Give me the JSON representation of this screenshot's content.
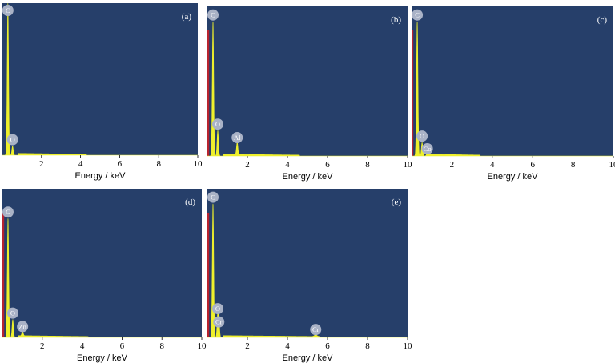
{
  "chart_data": [
    {
      "type": "area",
      "panel_label": "(a)",
      "xlabel": "Energy / keV",
      "xlim": [
        0,
        10
      ],
      "xticks": [
        2,
        4,
        6,
        8,
        10
      ],
      "ylim": [
        0,
        100
      ],
      "colors": {
        "background": "#263f6a",
        "spectrum": "#eef02c",
        "baseline_marker": "#b8232f",
        "label_circle": "#a9b2c6"
      },
      "peaks": [
        {
          "element": "C",
          "energy": 0.28,
          "height": 100,
          "labeled": true
        },
        {
          "element": "O",
          "energy": 0.52,
          "height": 6,
          "labeled": true
        }
      ],
      "background_level": 1.2,
      "background_range": [
        0.8,
        4.3
      ]
    },
    {
      "type": "area",
      "panel_label": "(b)",
      "xlabel": "Energy / keV",
      "xlim": [
        0,
        10
      ],
      "xticks": [
        2,
        4,
        6,
        8,
        10
      ],
      "ylim": [
        0,
        100
      ],
      "colors": {
        "background": "#263f6a",
        "spectrum": "#eef02c",
        "baseline_marker": "#b8232f",
        "label_circle": "#a9b2c6"
      },
      "peaks": [
        {
          "element": "C",
          "energy": 0.28,
          "height": 90,
          "labeled": true
        },
        {
          "element": "O",
          "energy": 0.52,
          "height": 17,
          "labeled": true
        },
        {
          "element": "Al",
          "energy": 1.49,
          "height": 8,
          "labeled": true
        }
      ],
      "background_level": 1.2,
      "background_range": [
        0.8,
        4.6
      ]
    },
    {
      "type": "area",
      "panel_label": "(c)",
      "xlabel": "Energy / keV",
      "xlim": [
        0,
        10
      ],
      "xticks": [
        2,
        4,
        6,
        8,
        10
      ],
      "ylim": [
        0,
        100
      ],
      "colors": {
        "background": "#263f6a",
        "spectrum": "#eef02c",
        "baseline_marker": "#b8232f",
        "label_circle": "#a9b2c6"
      },
      "peaks": [
        {
          "element": "C",
          "energy": 0.28,
          "height": 90,
          "labeled": true
        },
        {
          "element": "O",
          "energy": 0.52,
          "height": 9,
          "labeled": true
        },
        {
          "element": "Co",
          "energy": 0.78,
          "height": 3,
          "labeled": true
        }
      ],
      "background_level": 1.2,
      "background_range": [
        0.8,
        3.4
      ]
    },
    {
      "type": "area",
      "panel_label": "(d)",
      "xlabel": "Energy / keV",
      "xlim": [
        0,
        10
      ],
      "xticks": [
        2,
        4,
        6,
        8,
        10
      ],
      "ylim": [
        0,
        100
      ],
      "colors": {
        "background": "#263f6a",
        "spectrum": "#eef02c",
        "baseline_marker": "#b8232f",
        "label_circle": "#a9b2c6"
      },
      "peaks": [
        {
          "element": "C",
          "energy": 0.28,
          "height": 80,
          "labeled": true
        },
        {
          "element": "O",
          "energy": 0.52,
          "height": 12,
          "labeled": true
        },
        {
          "element": "Zn",
          "energy": 1.01,
          "height": 3,
          "labeled": true
        }
      ],
      "background_level": 1.2,
      "background_range": [
        0.8,
        4.3
      ]
    },
    {
      "type": "area",
      "panel_label": "(e)",
      "xlabel": "Energy / keV",
      "xlim": [
        0,
        10
      ],
      "xticks": [
        2,
        4,
        6,
        8,
        10
      ],
      "ylim": [
        0,
        100
      ],
      "colors": {
        "background": "#263f6a",
        "spectrum": "#eef02c",
        "baseline_marker": "#b8232f",
        "label_circle": "#a9b2c6"
      },
      "peaks": [
        {
          "element": "C",
          "energy": 0.28,
          "height": 90,
          "labeled": true
        },
        {
          "element": "O",
          "energy": 0.52,
          "height": 15,
          "labeled": true
        },
        {
          "element": "Cr",
          "energy": 0.57,
          "height": 12,
          "labeled": true
        },
        {
          "element": "Cr",
          "energy": 5.41,
          "height": 1,
          "labeled": true
        }
      ],
      "background_level": 1.2,
      "background_range": [
        0.8,
        5.6
      ]
    }
  ]
}
